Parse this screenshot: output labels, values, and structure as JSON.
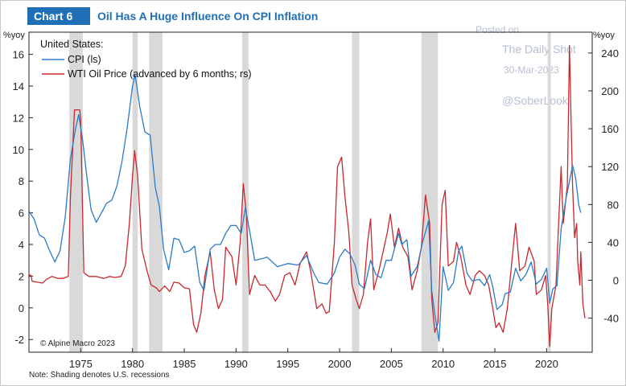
{
  "badge": "Chart 6",
  "title": "Oil Has A Huge Influence On CPI Inflation",
  "watermark": {
    "posted_on": "Posted on",
    "source": "The Daily Shot",
    "date": "30-Mar-2023",
    "handle": "@SoberLook"
  },
  "legend": {
    "header": "United States:",
    "items": [
      "CPI (ls)",
      "WTI Oil Price (advanced by 6 months; rs)"
    ]
  },
  "copyright": "© Alpine Macro 2023",
  "note": "Note: Shading denotes U.S. recessions",
  "colors": {
    "cpi": "#2b7bc8",
    "oil": "#c8282e",
    "recession": "#d9d9d9",
    "brand": "#1f6fb7"
  },
  "chart_data": {
    "type": "line",
    "left_axis": {
      "unit": "%yoy",
      "ylim": [
        -2.8,
        17.4
      ],
      "ticks": [
        "-2",
        "0",
        "2",
        "4",
        "6",
        "8",
        "10",
        "12",
        "14",
        "16"
      ]
    },
    "right_axis": {
      "unit": "%yoy",
      "ylim": [
        -76,
        262
      ],
      "ticks": [
        "-40",
        "0",
        "40",
        "80",
        "120",
        "160",
        "200",
        "240"
      ]
    },
    "x_axis": {
      "xlim": [
        1970.0,
        2024.4
      ],
      "ticks": [
        "1975",
        "1980",
        "1985",
        "1990",
        "1995",
        "2000",
        "2005",
        "2010",
        "2015",
        "2020"
      ]
    },
    "recessions": [
      [
        1973.9,
        1975.2
      ],
      [
        1980.0,
        1980.5
      ],
      [
        1981.6,
        1982.9
      ],
      [
        1990.6,
        1991.2
      ],
      [
        2001.2,
        2001.9
      ],
      [
        2007.9,
        2009.5
      ],
      [
        2020.1,
        2020.4
      ]
    ],
    "series": [
      {
        "name": "CPI (ls)",
        "axis": "left",
        "points": [
          [
            1970.0,
            6.1
          ],
          [
            1970.5,
            5.6
          ],
          [
            1971.0,
            4.6
          ],
          [
            1971.5,
            4.4
          ],
          [
            1972.0,
            3.6
          ],
          [
            1972.5,
            2.9
          ],
          [
            1973.0,
            3.6
          ],
          [
            1973.5,
            5.7
          ],
          [
            1974.0,
            9.4
          ],
          [
            1974.5,
            11.3
          ],
          [
            1974.8,
            12.2
          ],
          [
            1975.2,
            10.5
          ],
          [
            1975.6,
            8.2
          ],
          [
            1976.0,
            6.2
          ],
          [
            1976.5,
            5.4
          ],
          [
            1977.0,
            6.0
          ],
          [
            1977.5,
            6.6
          ],
          [
            1978.0,
            6.8
          ],
          [
            1978.5,
            7.7
          ],
          [
            1979.0,
            9.3
          ],
          [
            1979.5,
            11.4
          ],
          [
            1980.0,
            14.0
          ],
          [
            1980.25,
            14.7
          ],
          [
            1980.7,
            12.7
          ],
          [
            1981.2,
            11.1
          ],
          [
            1981.7,
            10.9
          ],
          [
            1982.2,
            7.6
          ],
          [
            1982.6,
            6.4
          ],
          [
            1983.0,
            3.7
          ],
          [
            1983.5,
            2.4
          ],
          [
            1984.0,
            4.4
          ],
          [
            1984.5,
            4.3
          ],
          [
            1985.0,
            3.5
          ],
          [
            1985.5,
            3.6
          ],
          [
            1986.0,
            3.9
          ],
          [
            1986.5,
            1.6
          ],
          [
            1986.9,
            1.1
          ],
          [
            1987.5,
            3.7
          ],
          [
            1988.0,
            4.0
          ],
          [
            1988.5,
            4.0
          ],
          [
            1989.0,
            4.7
          ],
          [
            1989.5,
            5.2
          ],
          [
            1990.0,
            5.2
          ],
          [
            1990.5,
            4.7
          ],
          [
            1990.9,
            6.3
          ],
          [
            1991.3,
            4.9
          ],
          [
            1991.8,
            3.0
          ],
          [
            1992.5,
            3.1
          ],
          [
            1993.0,
            3.2
          ],
          [
            1994.0,
            2.6
          ],
          [
            1995.0,
            2.8
          ],
          [
            1996.0,
            2.7
          ],
          [
            1996.8,
            3.3
          ],
          [
            1997.5,
            2.2
          ],
          [
            1998.0,
            1.6
          ],
          [
            1998.8,
            1.5
          ],
          [
            1999.5,
            2.2
          ],
          [
            2000.0,
            3.2
          ],
          [
            2000.5,
            3.7
          ],
          [
            2001.0,
            3.4
          ],
          [
            2001.5,
            2.7
          ],
          [
            2001.9,
            1.5
          ],
          [
            2002.4,
            1.2
          ],
          [
            2003.0,
            3.0
          ],
          [
            2003.5,
            2.1
          ],
          [
            2004.0,
            1.9
          ],
          [
            2004.5,
            3.0
          ],
          [
            2005.0,
            3.0
          ],
          [
            2005.7,
            4.7
          ],
          [
            2006.0,
            4.0
          ],
          [
            2006.5,
            4.3
          ],
          [
            2006.9,
            2.0
          ],
          [
            2007.5,
            2.6
          ],
          [
            2008.0,
            4.1
          ],
          [
            2008.6,
            5.5
          ],
          [
            2008.9,
            1.1
          ],
          [
            2009.2,
            -0.4
          ],
          [
            2009.6,
            -2.1
          ],
          [
            2010.0,
            2.6
          ],
          [
            2010.5,
            1.1
          ],
          [
            2011.0,
            1.6
          ],
          [
            2011.5,
            3.6
          ],
          [
            2011.8,
            3.9
          ],
          [
            2012.3,
            2.2
          ],
          [
            2012.8,
            1.7
          ],
          [
            2013.5,
            1.8
          ],
          [
            2014.0,
            1.4
          ],
          [
            2014.5,
            2.1
          ],
          [
            2014.8,
            1.3
          ],
          [
            2015.2,
            -0.1
          ],
          [
            2015.7,
            0.2
          ],
          [
            2016.0,
            0.9
          ],
          [
            2016.5,
            1.0
          ],
          [
            2017.0,
            2.5
          ],
          [
            2017.5,
            1.7
          ],
          [
            2018.0,
            2.1
          ],
          [
            2018.5,
            2.9
          ],
          [
            2019.0,
            1.5
          ],
          [
            2019.5,
            1.8
          ],
          [
            2020.0,
            2.5
          ],
          [
            2020.3,
            0.3
          ],
          [
            2020.6,
            1.2
          ],
          [
            2021.0,
            1.4
          ],
          [
            2021.4,
            5.0
          ],
          [
            2021.9,
            7.0
          ],
          [
            2022.3,
            8.3
          ],
          [
            2022.5,
            9.0
          ],
          [
            2022.8,
            8.2
          ],
          [
            2023.1,
            6.5
          ],
          [
            2023.3,
            6.0
          ]
        ]
      },
      {
        "name": "WTI Oil Price (advanced by 6 months; rs)",
        "axis": "right",
        "points": [
          [
            1970.0,
            6
          ],
          [
            1970.2,
            5
          ],
          [
            1970.3,
            -1
          ],
          [
            1970.8,
            -2
          ],
          [
            1971.3,
            -3
          ],
          [
            1971.7,
            1
          ],
          [
            1972.2,
            4
          ],
          [
            1972.8,
            2
          ],
          [
            1973.3,
            2
          ],
          [
            1973.5,
            3
          ],
          [
            1973.8,
            4
          ],
          [
            1974.0,
            88
          ],
          [
            1974.4,
            180
          ],
          [
            1974.9,
            180
          ],
          [
            1975.0,
            170
          ],
          [
            1975.3,
            8
          ],
          [
            1975.8,
            4
          ],
          [
            1976.5,
            4
          ],
          [
            1977.2,
            2
          ],
          [
            1977.8,
            4
          ],
          [
            1978.3,
            3
          ],
          [
            1978.9,
            4
          ],
          [
            1979.3,
            15
          ],
          [
            1979.7,
            60
          ],
          [
            1980.0,
            110
          ],
          [
            1980.2,
            137
          ],
          [
            1980.5,
            110
          ],
          [
            1980.9,
            33
          ],
          [
            1981.4,
            10
          ],
          [
            1981.8,
            -5
          ],
          [
            1982.3,
            -8
          ],
          [
            1982.6,
            -12
          ],
          [
            1983.1,
            -6
          ],
          [
            1983.6,
            -12
          ],
          [
            1984.0,
            -2
          ],
          [
            1984.5,
            -3
          ],
          [
            1985.0,
            -8
          ],
          [
            1985.5,
            -9
          ],
          [
            1985.9,
            -47
          ],
          [
            1986.2,
            -55
          ],
          [
            1986.6,
            -35
          ],
          [
            1987.0,
            5
          ],
          [
            1987.5,
            30
          ],
          [
            1987.9,
            -10
          ],
          [
            1988.3,
            -30
          ],
          [
            1988.7,
            -20
          ],
          [
            1989.0,
            35
          ],
          [
            1989.6,
            25
          ],
          [
            1990.0,
            -5
          ],
          [
            1990.4,
            40
          ],
          [
            1990.7,
            102
          ],
          [
            1991.0,
            70
          ],
          [
            1991.3,
            -15
          ],
          [
            1991.8,
            5
          ],
          [
            1992.3,
            -5
          ],
          [
            1992.8,
            -5
          ],
          [
            1993.3,
            -12
          ],
          [
            1993.8,
            -22
          ],
          [
            1994.2,
            -15
          ],
          [
            1994.7,
            5
          ],
          [
            1995.2,
            8
          ],
          [
            1995.7,
            -5
          ],
          [
            1996.2,
            18
          ],
          [
            1996.8,
            30
          ],
          [
            1997.2,
            10
          ],
          [
            1997.8,
            -30
          ],
          [
            1998.3,
            -25
          ],
          [
            1998.7,
            -35
          ],
          [
            1999.0,
            -33
          ],
          [
            1999.5,
            40
          ],
          [
            1999.8,
            120
          ],
          [
            2000.2,
            130
          ],
          [
            2000.5,
            90
          ],
          [
            2000.9,
            50
          ],
          [
            2001.2,
            -5
          ],
          [
            2001.6,
            -20
          ],
          [
            2001.9,
            -30
          ],
          [
            2002.3,
            -15
          ],
          [
            2002.7,
            40
          ],
          [
            2003.0,
            65
          ],
          [
            2003.3,
            -10
          ],
          [
            2003.8,
            10
          ],
          [
            2004.2,
            30
          ],
          [
            2004.6,
            50
          ],
          [
            2004.9,
            70
          ],
          [
            2005.3,
            35
          ],
          [
            2005.7,
            55
          ],
          [
            2006.1,
            35
          ],
          [
            2006.6,
            25
          ],
          [
            2007.0,
            -10
          ],
          [
            2007.5,
            10
          ],
          [
            2007.9,
            35
          ],
          [
            2008.3,
            90
          ],
          [
            2008.7,
            60
          ],
          [
            2008.9,
            -20
          ],
          [
            2009.2,
            -55
          ],
          [
            2009.5,
            -45
          ],
          [
            2009.9,
            80
          ],
          [
            2010.2,
            95
          ],
          [
            2010.5,
            15
          ],
          [
            2011.0,
            20
          ],
          [
            2011.3,
            40
          ],
          [
            2011.7,
            25
          ],
          [
            2012.2,
            -5
          ],
          [
            2012.6,
            -15
          ],
          [
            2013.1,
            5
          ],
          [
            2013.5,
            10
          ],
          [
            2014.0,
            5
          ],
          [
            2014.4,
            -5
          ],
          [
            2014.8,
            -30
          ],
          [
            2015.1,
            -50
          ],
          [
            2015.4,
            -45
          ],
          [
            2015.8,
            -55
          ],
          [
            2016.2,
            -30
          ],
          [
            2016.6,
            15
          ],
          [
            2017.0,
            60
          ],
          [
            2017.4,
            10
          ],
          [
            2017.9,
            15
          ],
          [
            2018.3,
            35
          ],
          [
            2018.8,
            20
          ],
          [
            2019.0,
            -15
          ],
          [
            2019.5,
            -10
          ],
          [
            2019.9,
            5
          ],
          [
            2020.1,
            -25
          ],
          [
            2020.3,
            -70
          ],
          [
            2020.5,
            -30
          ],
          [
            2020.9,
            -5
          ],
          [
            2021.1,
            45
          ],
          [
            2021.4,
            120
          ],
          [
            2021.6,
            60
          ],
          [
            2021.8,
            80
          ],
          [
            2022.0,
            100
          ],
          [
            2022.1,
            170
          ],
          [
            2022.2,
            248
          ],
          [
            2022.5,
            100
          ],
          [
            2022.7,
            45
          ],
          [
            2022.9,
            60
          ],
          [
            2023.0,
            20
          ],
          [
            2023.2,
            -5
          ],
          [
            2023.3,
            30
          ],
          [
            2023.5,
            -25
          ],
          [
            2023.7,
            -40
          ]
        ]
      }
    ]
  }
}
